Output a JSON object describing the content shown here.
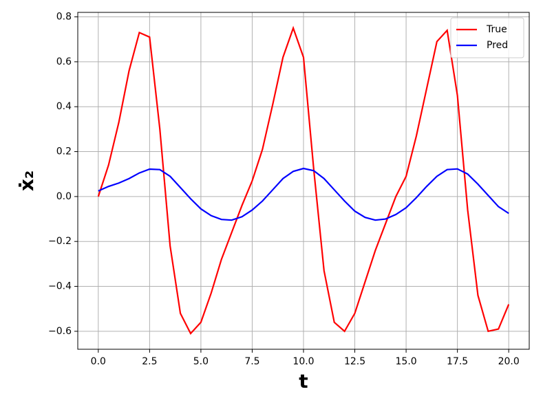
{
  "chart_data": {
    "type": "line",
    "xlabel": "t",
    "ylabel": "ẋ₂",
    "x": [
      0,
      0.5,
      1,
      1.5,
      2,
      2.5,
      3,
      3.5,
      4,
      4.5,
      5,
      5.5,
      6,
      6.5,
      7,
      7.5,
      8,
      8.5,
      9,
      9.5,
      10,
      10.5,
      11,
      11.5,
      12,
      12.5,
      13,
      13.5,
      14,
      14.5,
      15,
      15.5,
      16,
      16.5,
      17,
      17.5,
      18,
      18.5,
      19,
      19.5,
      20
    ],
    "series": [
      {
        "name": "True",
        "color": "#ff0000",
        "values": [
          0.0,
          0.14,
          0.33,
          0.56,
          0.73,
          0.71,
          0.3,
          -0.22,
          -0.52,
          -0.61,
          -0.56,
          -0.43,
          -0.28,
          -0.16,
          -0.04,
          0.07,
          0.21,
          0.41,
          0.62,
          0.75,
          0.62,
          0.12,
          -0.33,
          -0.56,
          -0.6,
          -0.52,
          -0.38,
          -0.24,
          -0.12,
          0.0,
          0.09,
          0.27,
          0.48,
          0.69,
          0.74,
          0.45,
          -0.06,
          -0.44,
          -0.6,
          -0.59,
          -0.48
        ]
      },
      {
        "name": "Pred",
        "color": "#0000ff",
        "values": [
          0.025,
          0.045,
          0.06,
          0.08,
          0.105,
          0.122,
          0.12,
          0.09,
          0.04,
          -0.01,
          -0.055,
          -0.085,
          -0.102,
          -0.105,
          -0.09,
          -0.06,
          -0.02,
          0.03,
          0.08,
          0.112,
          0.125,
          0.115,
          0.08,
          0.03,
          -0.02,
          -0.065,
          -0.093,
          -0.105,
          -0.1,
          -0.08,
          -0.05,
          -0.005,
          0.045,
          0.09,
          0.12,
          0.123,
          0.1,
          0.055,
          0.005,
          -0.045,
          -0.075
        ]
      }
    ],
    "xlim": [
      -1.0,
      21.0
    ],
    "ylim": [
      -0.68,
      0.82
    ],
    "xticks": [
      {
        "value": 0,
        "label": "0.0"
      },
      {
        "value": 2.5,
        "label": "2.5"
      },
      {
        "value": 5,
        "label": "5.0"
      },
      {
        "value": 7.5,
        "label": "7.5"
      },
      {
        "value": 10,
        "label": "10.0"
      },
      {
        "value": 12.5,
        "label": "12.5"
      },
      {
        "value": 15,
        "label": "15.0"
      },
      {
        "value": 17.5,
        "label": "17.5"
      },
      {
        "value": 20,
        "label": "20.0"
      }
    ],
    "yticks": [
      {
        "value": -0.6,
        "label": "−0.6"
      },
      {
        "value": -0.4,
        "label": "−0.4"
      },
      {
        "value": -0.2,
        "label": "−0.2"
      },
      {
        "value": 0,
        "label": "0.0"
      },
      {
        "value": 0.2,
        "label": "0.2"
      },
      {
        "value": 0.4,
        "label": "0.4"
      },
      {
        "value": 0.6,
        "label": "0.6"
      },
      {
        "value": 0.8,
        "label": "0.8"
      }
    ],
    "grid": true,
    "legend": "upper right"
  }
}
